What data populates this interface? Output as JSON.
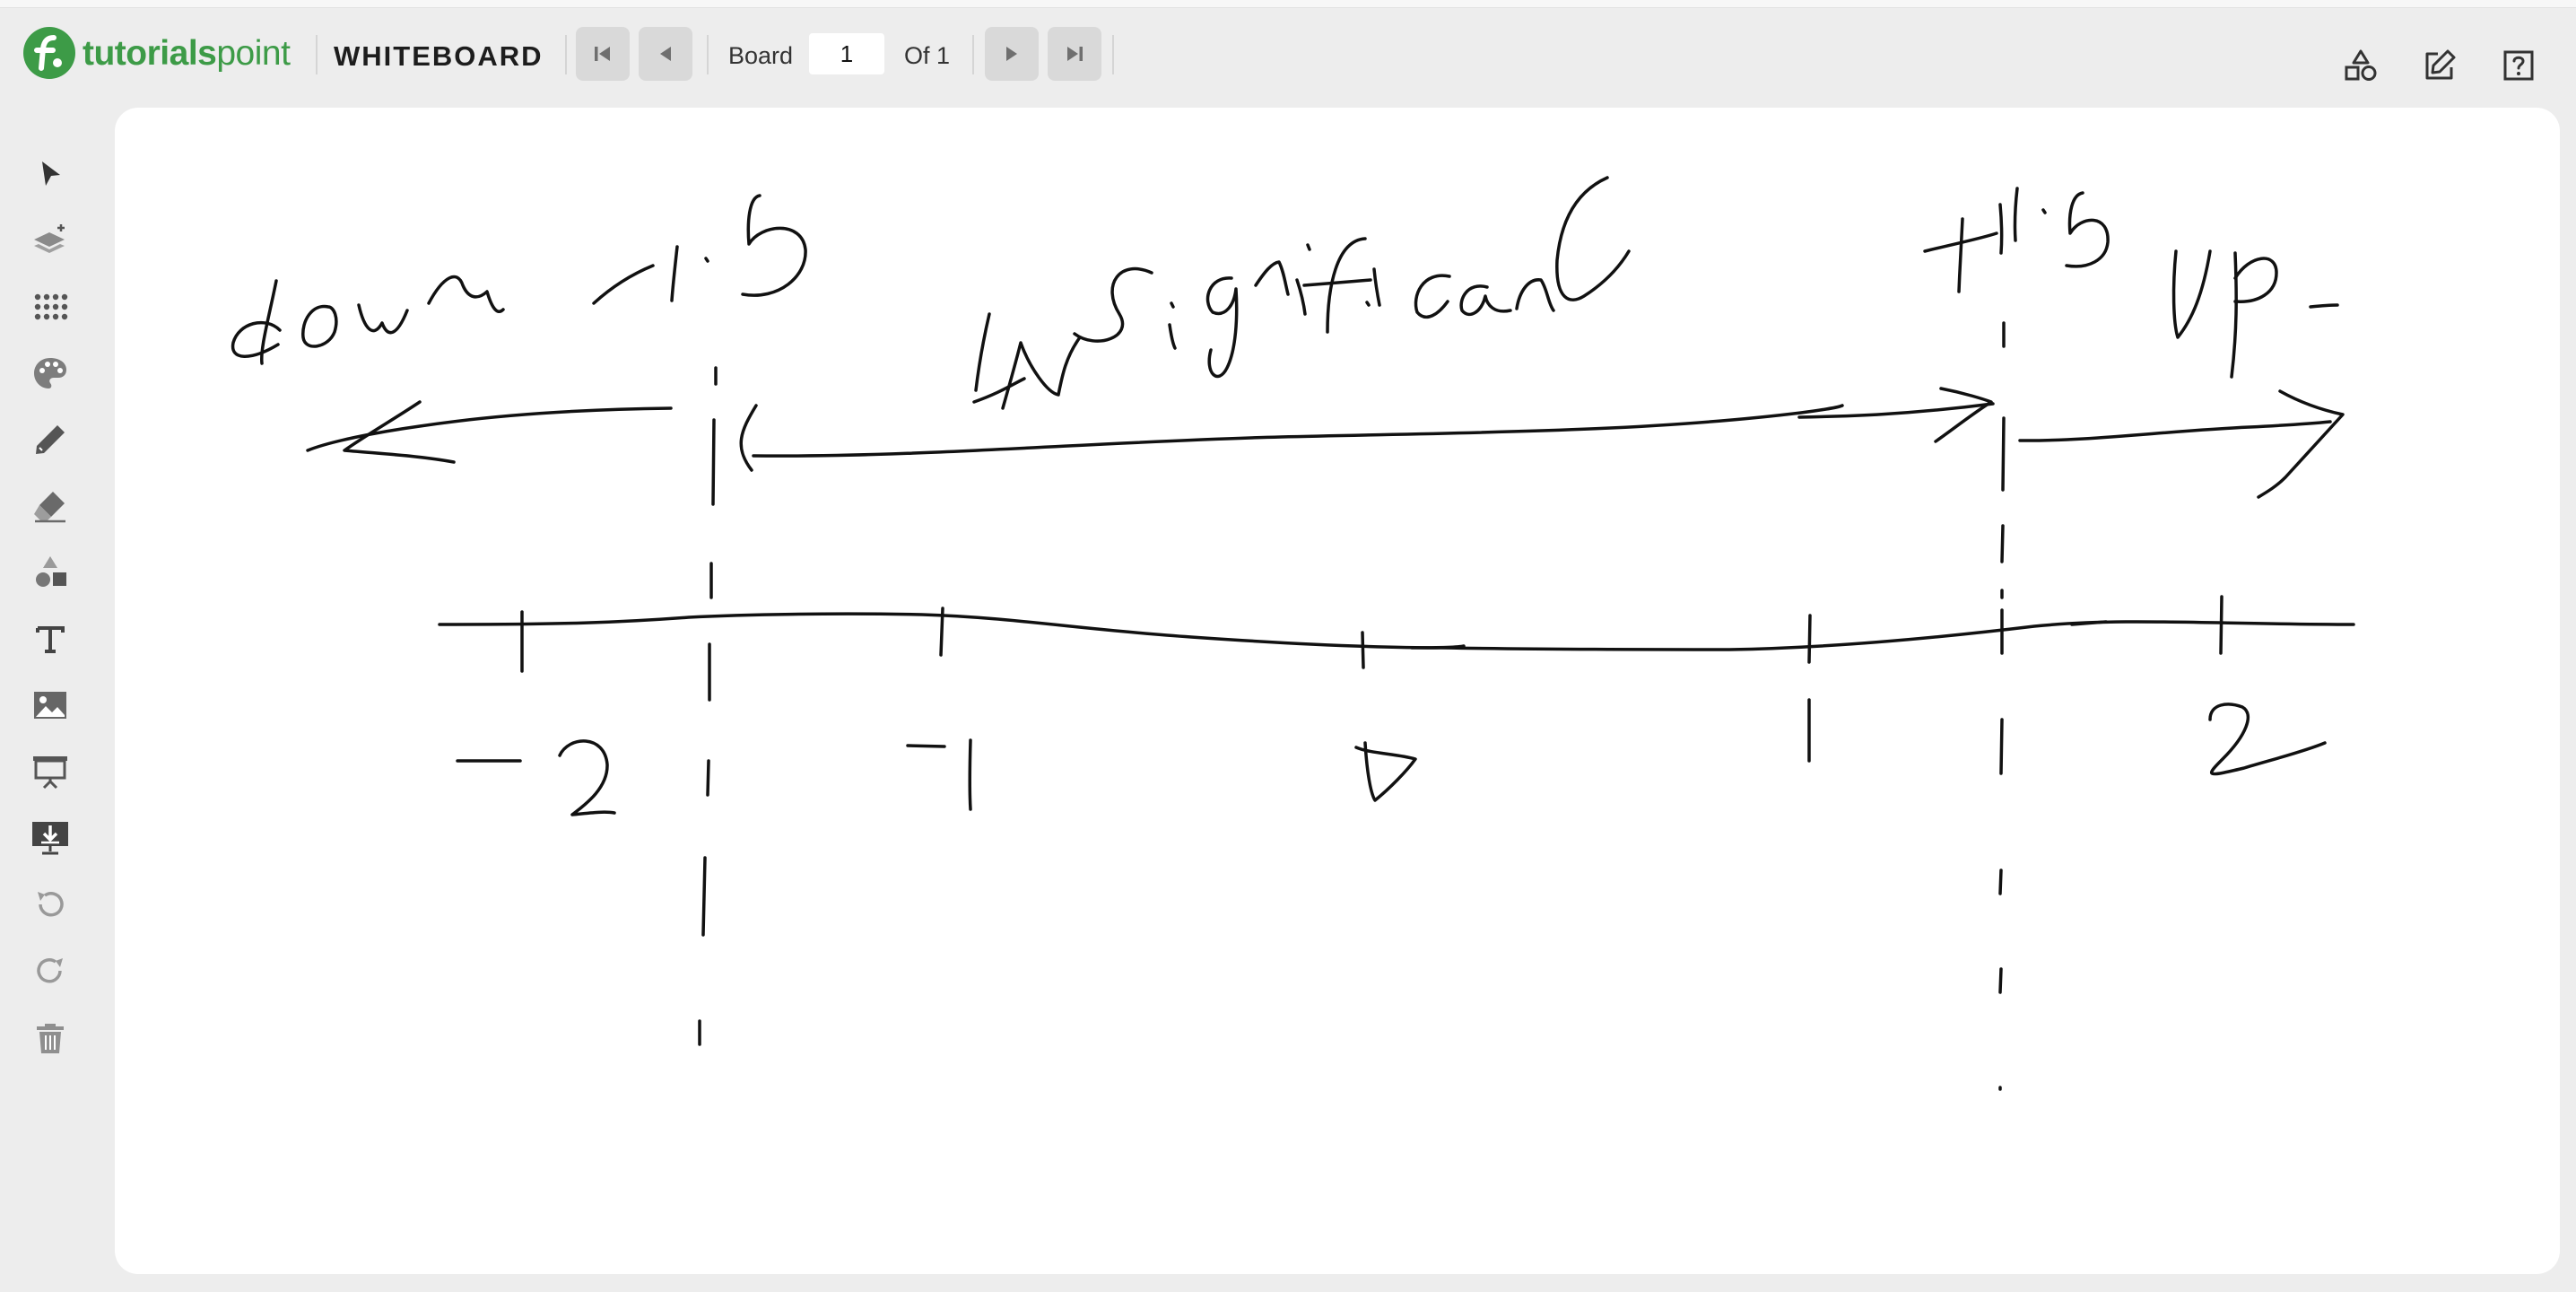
{
  "app": {
    "brand_bold": "tutorials",
    "brand_light": "point",
    "title": "WHITEBOARD"
  },
  "navigation": {
    "board_label": "Board",
    "current_board": "1",
    "of_label": "Of 1",
    "buttons": [
      "first-board",
      "previous-board",
      "next-board",
      "last-board"
    ]
  },
  "top_right_tools": [
    "shapes-icon",
    "edit-icon",
    "help-icon"
  ],
  "sidebar_tools": [
    "select-pointer-icon",
    "layers-add-icon",
    "dot-grid-icon",
    "color-palette-icon",
    "pencil-icon",
    "eraser-icon",
    "shapes-icon",
    "text-icon",
    "image-icon",
    "presentation-icon",
    "download-screen-icon",
    "undo-icon",
    "redo-icon",
    "trash-icon"
  ],
  "handwriting": {
    "top_left_label": "down",
    "left_threshold": "-1.5",
    "middle_label": "IN significant",
    "right_threshold": "+1.5",
    "top_right_label": "Up",
    "axis_ticks": [
      "-2",
      "-1",
      "0",
      "1",
      "2"
    ]
  },
  "colors": {
    "brand_green": "#3d9b47",
    "background": "#ededed",
    "canvas": "#ffffff",
    "ink": "#111111"
  }
}
